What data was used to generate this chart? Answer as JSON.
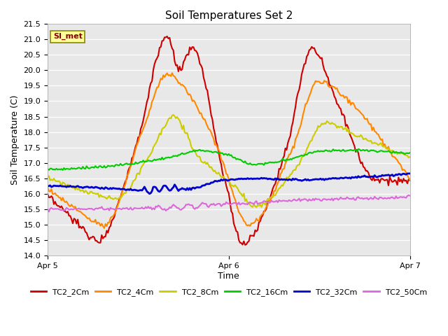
{
  "title": "Soil Temperatures Set 2",
  "xlabel": "Time",
  "ylabel": "Soil Temperature (C)",
  "ylim": [
    14.0,
    21.5
  ],
  "annotation": "SI_met",
  "plot_bg_color": "#e8e8e8",
  "series": {
    "TC2_2Cm": {
      "color": "#cc0000",
      "lw": 1.5
    },
    "TC2_4Cm": {
      "color": "#ff8800",
      "lw": 1.5
    },
    "TC2_8Cm": {
      "color": "#cccc00",
      "lw": 1.5
    },
    "TC2_16Cm": {
      "color": "#00cc00",
      "lw": 1.5
    },
    "TC2_32Cm": {
      "color": "#0000cc",
      "lw": 2.0
    },
    "TC2_50Cm": {
      "color": "#dd66dd",
      "lw": 1.5
    }
  },
  "x_ticks": [
    0,
    144,
    288
  ],
  "x_tick_labels": [
    "Apr 5",
    "Apr 6",
    "Apr 7"
  ],
  "n_points": 289
}
